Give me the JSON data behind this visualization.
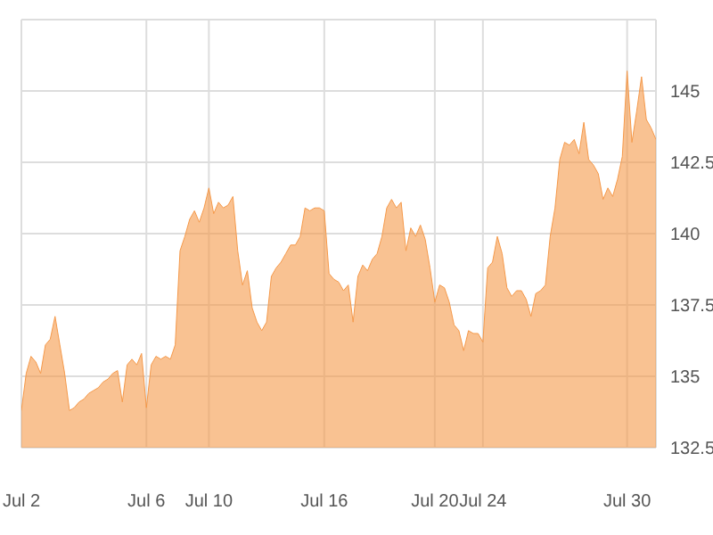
{
  "chart_data": {
    "type": "area",
    "color": "#f5994a",
    "categories": [
      "Jul 2",
      null,
      null,
      null,
      null,
      null,
      null,
      null,
      null,
      null,
      null,
      null,
      null,
      null,
      null,
      null,
      null,
      null,
      null,
      null,
      null,
      null,
      null,
      null,
      null,
      null,
      "Jul 6",
      null,
      null,
      null,
      null,
      null,
      null,
      null,
      null,
      null,
      null,
      null,
      null,
      "Jul 10",
      null,
      null,
      null,
      null,
      null,
      null,
      null,
      null,
      null,
      null,
      null,
      null,
      null,
      null,
      null,
      null,
      null,
      null,
      null,
      null,
      null,
      null,
      null,
      "Jul 16",
      null,
      null,
      null,
      null,
      null,
      null,
      null,
      null,
      null,
      null,
      null,
      null,
      null,
      null,
      null,
      null,
      null,
      null,
      null,
      null,
      null,
      null,
      "Jul 20",
      null,
      null,
      null,
      null,
      null,
      null,
      null,
      null,
      null,
      "Jul 24",
      null,
      null,
      null,
      null,
      null,
      null,
      null,
      null,
      null,
      null,
      null,
      null,
      null,
      null,
      null,
      null,
      null,
      null,
      null,
      null,
      null,
      null,
      null,
      null,
      null,
      null,
      null,
      null,
      null,
      "Jul 30",
      null,
      null,
      null,
      null,
      null,
      null
    ],
    "values": [
      133.8,
      135.1,
      135.7,
      135.5,
      135.1,
      136.1,
      136.3,
      137.1,
      136.1,
      135.1,
      133.8,
      133.9,
      134.1,
      134.2,
      134.4,
      134.5,
      134.6,
      134.8,
      134.9,
      135.1,
      135.2,
      134.1,
      135.4,
      135.6,
      135.4,
      135.8,
      133.9,
      135.4,
      135.7,
      135.6,
      135.7,
      135.6,
      136.1,
      139.4,
      139.9,
      140.5,
      140.8,
      140.4,
      140.9,
      141.6,
      140.7,
      141.1,
      140.9,
      141.0,
      141.3,
      139.4,
      138.2,
      138.7,
      137.4,
      136.9,
      136.6,
      136.9,
      138.5,
      138.8,
      139.0,
      139.3,
      139.6,
      139.6,
      139.9,
      140.9,
      140.8,
      140.9,
      140.9,
      140.8,
      138.6,
      138.4,
      138.3,
      138.0,
      138.2,
      136.9,
      138.5,
      138.9,
      138.7,
      139.1,
      139.3,
      139.9,
      140.9,
      141.2,
      140.9,
      141.1,
      139.4,
      140.2,
      139.9,
      140.3,
      139.8,
      138.8,
      137.6,
      138.2,
      138.1,
      137.6,
      136.8,
      136.6,
      135.9,
      136.6,
      136.5,
      136.5,
      136.2,
      138.8,
      139.0,
      139.9,
      139.3,
      138.1,
      137.8,
      138.0,
      138.0,
      137.7,
      137.1,
      137.9,
      138.0,
      138.2,
      139.9,
      140.9,
      142.6,
      143.2,
      143.1,
      143.3,
      142.8,
      143.9,
      142.6,
      142.4,
      142.1,
      141.2,
      141.6,
      141.3,
      141.9,
      142.7,
      145.7,
      143.2,
      144.3,
      145.5,
      144.0,
      143.7,
      143.3
    ],
    "ylim": [
      132.5,
      147.5
    ],
    "yticks": [
      {
        "value": 132.5,
        "label": "132.5"
      },
      {
        "value": 135,
        "label": "135"
      },
      {
        "value": 137.5,
        "label": "137.5"
      },
      {
        "value": 140,
        "label": "140"
      },
      {
        "value": 142.5,
        "label": "142.5"
      },
      {
        "value": 145,
        "label": "145"
      },
      {
        "value": 147.5,
        "label": null
      }
    ],
    "grid": true
  }
}
